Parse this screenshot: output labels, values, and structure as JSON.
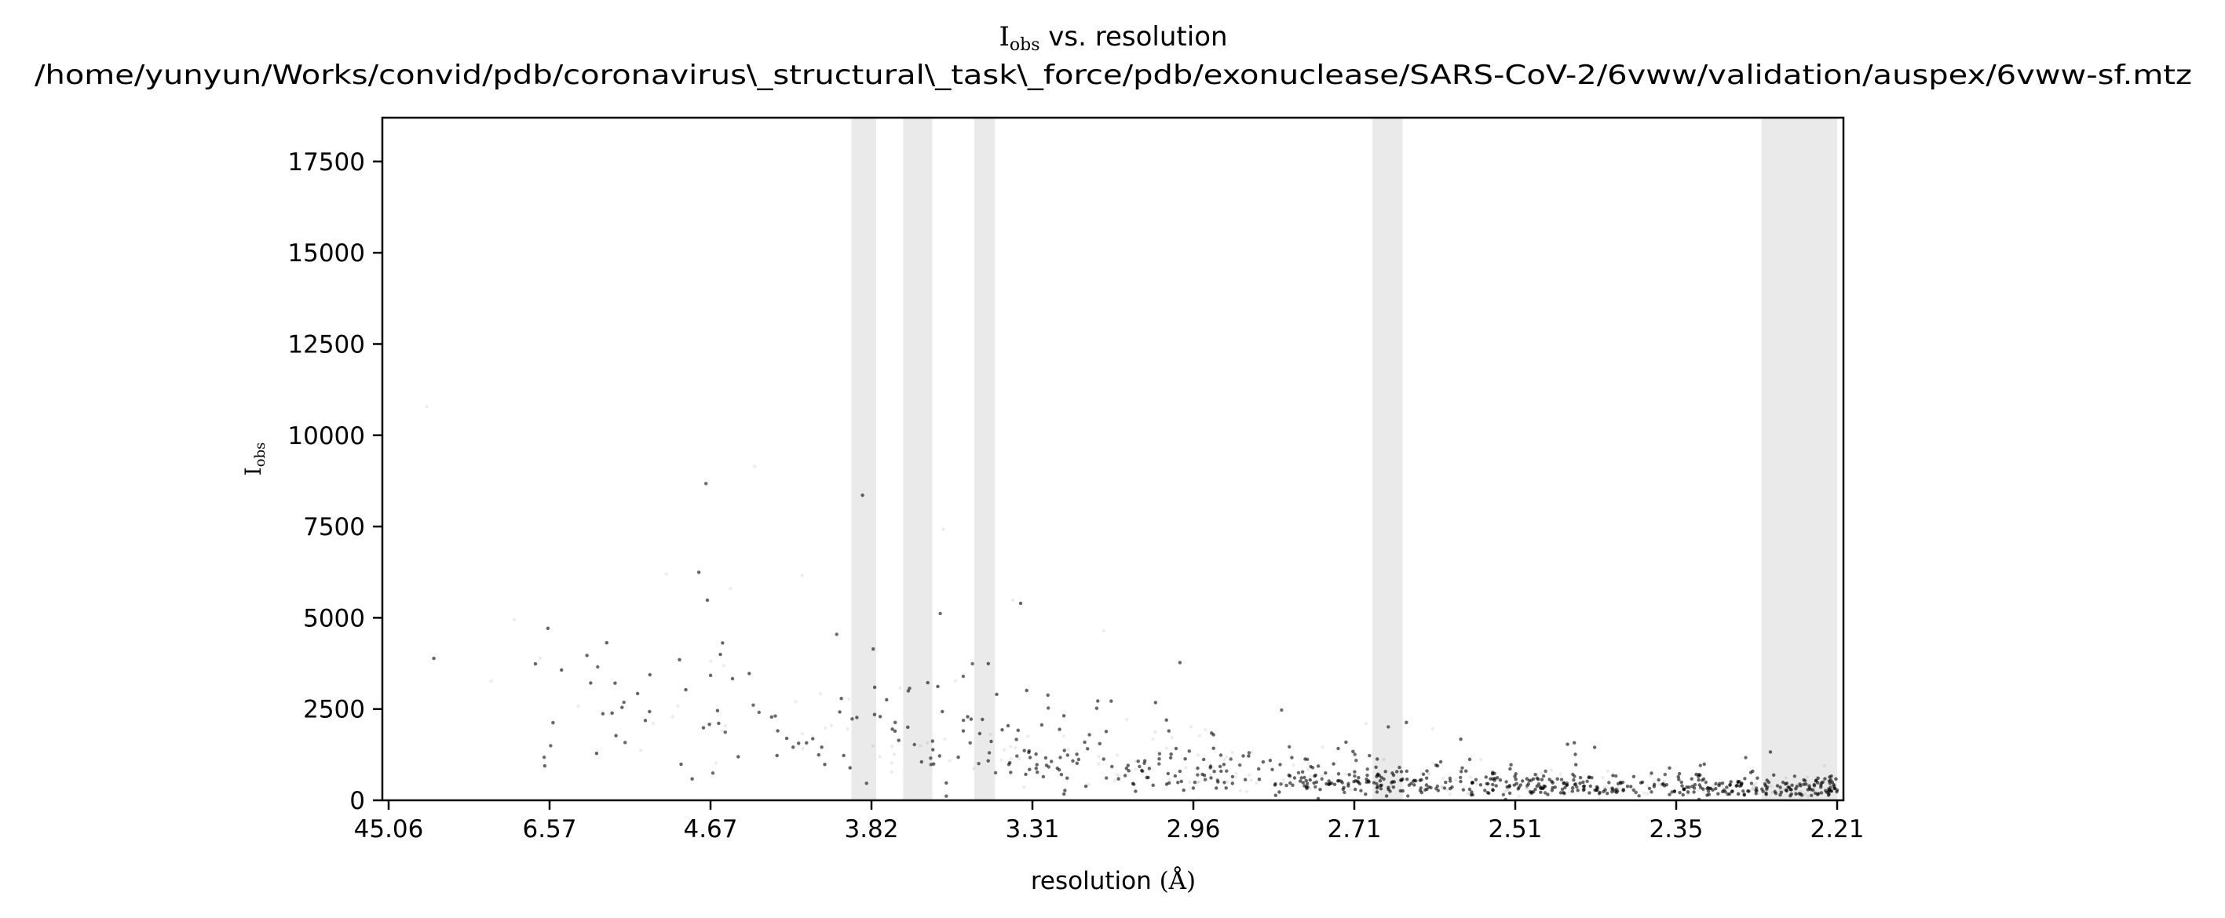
{
  "chart_data": {
    "type": "scatter",
    "title": {
      "symbol": "I",
      "symbol_subscript": "obs",
      "rest": " vs. resolution",
      "subtitle": "/home/yunyun/Works/convid/pdb/coronavirus\\_structural\\_task\\_force/pdb/exonuclease/SARS-CoV-2/6vww/validation/auspex/6vww-sf.mtz"
    },
    "xlabel": {
      "text": "resolution ",
      "unit": "(Å)"
    },
    "ylabel": {
      "symbol": "I",
      "subscript": "obs"
    },
    "x_scale": "reciprocal-square",
    "x_ticks": [
      "45.06",
      "6.57",
      "4.67",
      "3.82",
      "3.31",
      "2.96",
      "2.71",
      "2.51",
      "2.35",
      "2.21"
    ],
    "xlim": [
      45.06,
      2.21
    ],
    "y_ticks": [
      "0",
      "2500",
      "5000",
      "7500",
      "10000",
      "12500",
      "15000",
      "17500"
    ],
    "ylim": [
      0,
      18700
    ],
    "grid": false,
    "legend": "none",
    "point_color": "#000000",
    "ice_ring_color": "#bdbdbd",
    "ice_ring_bands": [
      {
        "from": 3.9,
        "to": 3.8
      },
      {
        "from": 3.7,
        "to": 3.6
      },
      {
        "from": 3.47,
        "to": 3.41
      },
      {
        "from": 2.68,
        "to": 2.64
      },
      {
        "from": 2.27,
        "to": 2.21
      }
    ],
    "density_profile": [
      {
        "resolution": 45.06,
        "mean_iobs": 4000,
        "spread": 9000
      },
      {
        "resolution": 6.57,
        "mean_iobs": 3200,
        "spread": 6500
      },
      {
        "resolution": 4.67,
        "mean_iobs": 2800,
        "spread": 5200
      },
      {
        "resolution": 3.82,
        "mean_iobs": 2400,
        "spread": 4200
      },
      {
        "resolution": 3.31,
        "mean_iobs": 1500,
        "spread": 2600
      },
      {
        "resolution": 2.96,
        "mean_iobs": 900,
        "spread": 1700
      },
      {
        "resolution": 2.71,
        "mean_iobs": 600,
        "spread": 1100
      },
      {
        "resolution": 2.51,
        "mean_iobs": 450,
        "spread": 800
      },
      {
        "resolution": 2.35,
        "mean_iobs": 380,
        "spread": 650
      },
      {
        "resolution": 2.21,
        "mean_iobs": 350,
        "spread": 600
      }
    ]
  }
}
